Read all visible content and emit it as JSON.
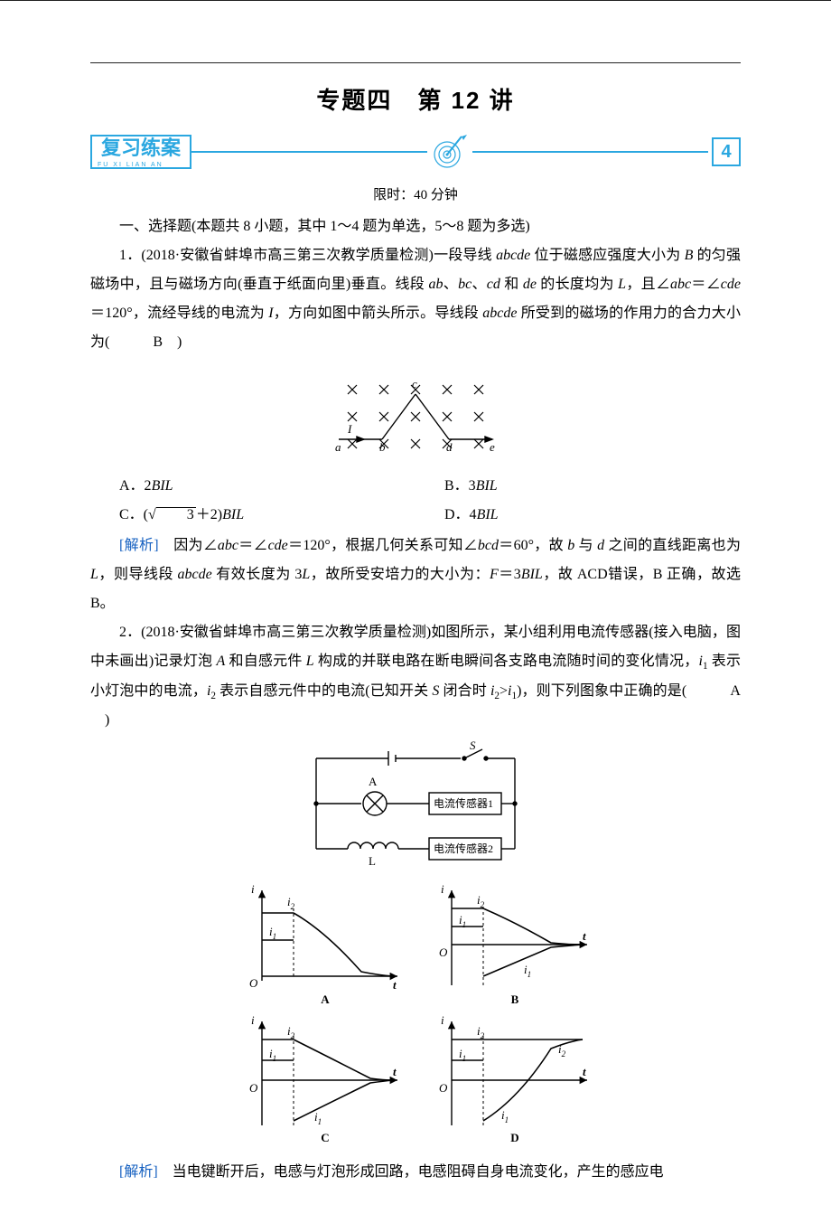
{
  "title": "专题四　第 12 讲",
  "banner": {
    "badge_text": "复习练案",
    "badge_pinyin": "FU  XI  LIAN  AN",
    "end_number": "4",
    "accent_color": "#2aa7e0"
  },
  "timer": "限时：40 分钟",
  "section_heading": "一、选择题(本题共 8 小题，其中 1～4 题为单选，5～8 题为多选)",
  "q1": {
    "stem_a": "1．(2018·安徽省蚌埠市高三第三次教学质量检测)一段导线 ",
    "wire1": "abcde",
    "stem_b": " 位于磁感应强度大小为 ",
    "B": "B",
    "stem_c": " 的匀强磁场中，且与磁场方向(垂直于纸面向里)垂直。线段 ",
    "seg_ab": "ab",
    "seg_bc": "bc",
    "seg_cd": "cd",
    "seg_de": "de",
    "stem_d": " 的长度均为 ",
    "L": "L",
    "stem_e": "，且∠",
    "ang1": "abc",
    "stem_f": "＝∠",
    "ang2": "cde",
    "stem_g": "＝120°，流经导线的电流为 ",
    "I": "I",
    "stem_h": "，方向如图中箭头所示。导线段 ",
    "wire2": "abcde",
    "stem_i": " 所受到的磁场的作用力的合力大小为(　",
    "answer": "B",
    "stem_j": "　)",
    "optA": "A．2",
    "optA_tail": "BIL",
    "optB": "B．3",
    "optB_tail": "BIL",
    "optC_pre": "C．(",
    "optC_rad": "3",
    "optC_post": "＋2)",
    "optC_tail": "BIL",
    "optD": "D．4",
    "optD_tail": "BIL",
    "analysis_label": "[解析]",
    "analysis_a": "　因为∠",
    "analysis_b": "＝∠",
    "analysis_c": "＝120°，根据几何关系可知∠",
    "ang3": "bcd",
    "analysis_d": "＝60°，故 ",
    "b": "b",
    "d": "d",
    "analysis_e": " 与 ",
    "analysis_f": " 之间的直线距离也为 ",
    "analysis_g": "，则导线段 ",
    "analysis_h": " 有效长度为 3",
    "analysis_i": "，故所受安培力的大小为：",
    "F": "F",
    "analysis_j": "＝3",
    "analysis_k": "，故 ACD错误，B 正确，故选 B。",
    "diagram": {
      "labels": {
        "a": "a",
        "b": "b",
        "c": "c",
        "d": "d",
        "e": "e",
        "I": "I"
      },
      "cross_color": "#000000",
      "line_color": "#000000",
      "font_size": 13
    }
  },
  "q2": {
    "stem_a": "2．(2018·安徽省蚌埠市高三第三次教学质量检测)如图所示，某小组利用电流传感器(接入电脑，图中未画出)记录灯泡 ",
    "A": "A",
    "stem_b": " 和自感元件 ",
    "Lc": "L",
    "stem_c": " 构成的并联电路在断电瞬间各支路电流随时间的变化情况，",
    "i1": "i",
    "sub1": "1",
    "stem_d": " 表示小灯泡中的电流，",
    "i2": "i",
    "sub2": "2",
    "stem_e": " 表示自感元件中的电流(已知开关 ",
    "S": "S",
    "stem_f": " 闭合时 ",
    "stem_g": ">",
    "stem_h": ")，则下列图象中正确的是(　",
    "answer": "A",
    "stem_i": "　)",
    "analysis_label": "[解析]",
    "analysis_text": "　当电键断开后，电感与灯泡形成回路，电感阻碍自身电流变化，产生的感应电",
    "circuit": {
      "labels": {
        "S": "S",
        "A": "A",
        "L": "L",
        "sensor1": "电流传感器1",
        "sensor2": "电流传感器2"
      },
      "line_color": "#000000",
      "arc_color": "#000000"
    },
    "graphs": {
      "axis_color": "#000000",
      "dash_color": "#000000",
      "i_label": "i",
      "t_label": "t",
      "O_label": "O",
      "i1_label": "i",
      "i1_sub": "1",
      "i2_label": "i",
      "i2_sub": "2",
      "panelA": "A",
      "panelB": "B",
      "panelC": "C",
      "panelD": "D"
    }
  }
}
